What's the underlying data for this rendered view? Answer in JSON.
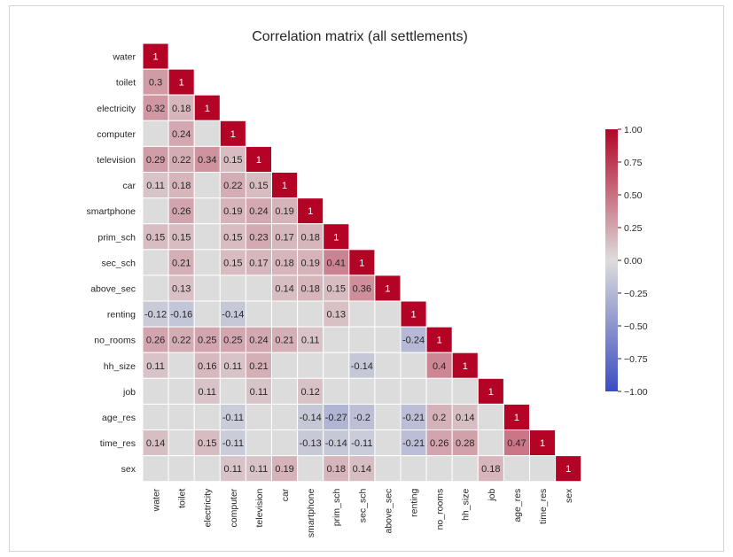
{
  "chart_data": {
    "type": "heatmap",
    "title": "Correlation matrix (all settlements)",
    "labels": [
      "water",
      "toilet",
      "electricity",
      "computer",
      "television",
      "car",
      "smartphone",
      "prim_sch",
      "sec_sch",
      "above_sec",
      "renting",
      "no_rooms",
      "hh_size",
      "job",
      "age_res",
      "time_res",
      "sex"
    ],
    "values": [
      [
        1
      ],
      [
        0.3,
        1
      ],
      [
        0.32,
        0.18,
        1
      ],
      [
        null,
        0.24,
        null,
        1
      ],
      [
        0.29,
        0.22,
        0.34,
        0.15,
        1
      ],
      [
        0.11,
        0.18,
        null,
        0.22,
        0.15,
        1
      ],
      [
        null,
        0.26,
        null,
        0.19,
        0.24,
        0.19,
        1
      ],
      [
        0.15,
        0.15,
        null,
        0.15,
        0.23,
        0.17,
        0.18,
        1
      ],
      [
        null,
        0.21,
        null,
        0.15,
        0.17,
        0.18,
        0.19,
        0.41,
        1
      ],
      [
        null,
        0.13,
        null,
        null,
        null,
        0.14,
        0.18,
        0.15,
        0.36,
        1
      ],
      [
        -0.12,
        -0.16,
        null,
        -0.14,
        null,
        null,
        null,
        0.13,
        null,
        null,
        1
      ],
      [
        0.26,
        0.22,
        0.25,
        0.25,
        0.24,
        0.21,
        0.11,
        null,
        null,
        null,
        -0.24,
        1
      ],
      [
        0.11,
        null,
        0.16,
        0.11,
        0.21,
        null,
        null,
        null,
        -0.14,
        null,
        null,
        0.4,
        1
      ],
      [
        null,
        null,
        0.11,
        null,
        0.11,
        null,
        0.12,
        null,
        null,
        null,
        null,
        null,
        null,
        1
      ],
      [
        null,
        null,
        null,
        -0.11,
        null,
        null,
        -0.14,
        -0.27,
        -0.2,
        null,
        -0.21,
        0.2,
        0.14,
        null,
        1
      ],
      [
        0.14,
        null,
        0.15,
        -0.11,
        null,
        null,
        -0.13,
        -0.14,
        -0.11,
        null,
        -0.21,
        0.26,
        0.28,
        null,
        0.47,
        1
      ],
      [
        null,
        null,
        null,
        0.11,
        0.11,
        0.19,
        null,
        0.18,
        0.14,
        null,
        null,
        null,
        null,
        0.18,
        null,
        null,
        1
      ]
    ],
    "colorbar": {
      "min": -1.0,
      "max": 1.0,
      "ticks": [
        "1.00",
        "0.75",
        "0.50",
        "0.25",
        "0.00",
        "−0.25",
        "−0.50",
        "−0.75",
        "−1.00"
      ],
      "colormap": "coolwarm",
      "low_color": "#3b4cc0",
      "mid_color": "#dddcdc",
      "high_color": "#b40426"
    },
    "grid": true,
    "cell_text_colors": {
      "dark": "#262626",
      "light": "#ffffff"
    }
  }
}
